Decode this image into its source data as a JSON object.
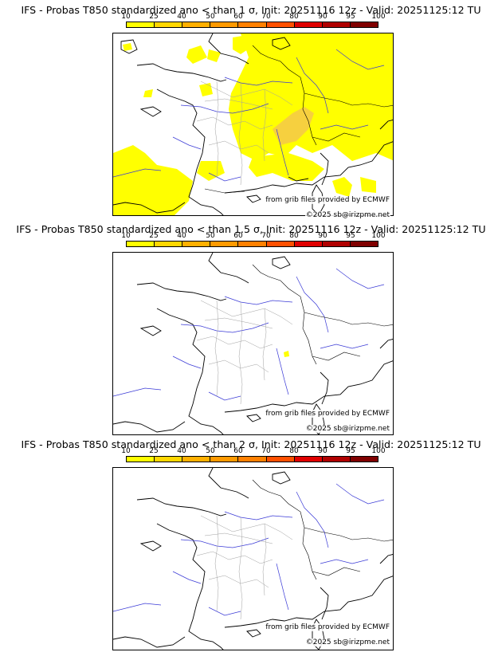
{
  "panels": [
    {
      "title": "IFS - Probas T850  standardized ano < than 1 σ, Init: 20251116 12z - Valid: 20251125:12 TU",
      "threshold": "1 σ"
    },
    {
      "title": "IFS - Probas T850  standardized ano < than 1.5 σ, Init: 20251116 12z - Valid: 20251125:12 TU",
      "threshold": "1.5 σ"
    },
    {
      "title": "IFS - Probas T850  standardized ano < than 2 σ, Init: 20251116 12z - Valid: 20251125:12 TU",
      "threshold": "2 σ"
    }
  ],
  "colorbar": {
    "ticks": [
      "10",
      "25",
      "40",
      "50",
      "60",
      "70",
      "80",
      "90",
      "95",
      "100"
    ],
    "colors": [
      "#ffff00",
      "#ffd700",
      "#ffb000",
      "#ff9a00",
      "#ff8000",
      "#ff5000",
      "#e00000",
      "#b00000",
      "#800000"
    ]
  },
  "credits": {
    "source": "from grib files provided by ECMWF",
    "copyright": "©2025 sb@irizpme.net"
  },
  "colors": {
    "coast": "#000000",
    "rivers": "#3a3ad6",
    "borders": "#a0a0a0",
    "prob_low": "#ffff00",
    "prob_mid": "#f5c84a"
  }
}
